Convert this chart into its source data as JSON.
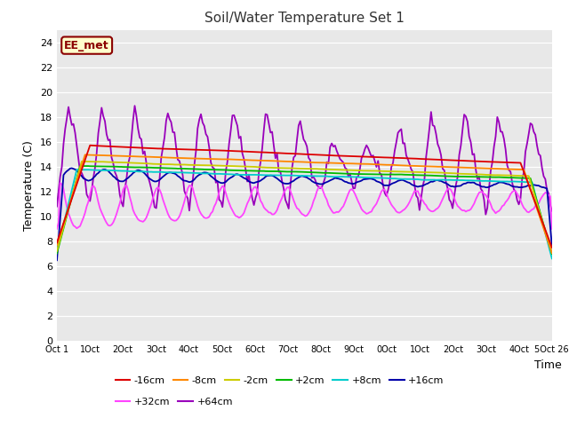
{
  "title": "Soil/Water Temperature Set 1",
  "xlabel": "Time",
  "ylabel": "Temperature (C)",
  "ylim": [
    0,
    25
  ],
  "yticks": [
    0,
    2,
    4,
    6,
    8,
    10,
    12,
    14,
    16,
    18,
    20,
    22,
    24
  ],
  "fig_bg": "#ffffff",
  "plot_bg": "#e8e8e8",
  "annotation_text": "EE_met",
  "annotation_bg": "#ffffcc",
  "annotation_border": "#8b0000",
  "annotation_text_color": "#8b0000",
  "colors": {
    "-16cm": "#dd0000",
    "-8cm": "#ff8800",
    "-2cm": "#cccc00",
    "+2cm": "#00bb00",
    "+8cm": "#00cccc",
    "+16cm": "#0000aa",
    "+32cm": "#ff44ff",
    "+64cm": "#9900bb"
  },
  "xtick_labels": [
    "Oct 1",
    "1Oct",
    "2Oct",
    "3Oct",
    "4Oct",
    "5Oct",
    "6Oct",
    "7Oct",
    "8Oct",
    "9Oct",
    "0Oct",
    "1Oct",
    "2Oct",
    "3Oct",
    "4Oct",
    "5Oct 26"
  ]
}
